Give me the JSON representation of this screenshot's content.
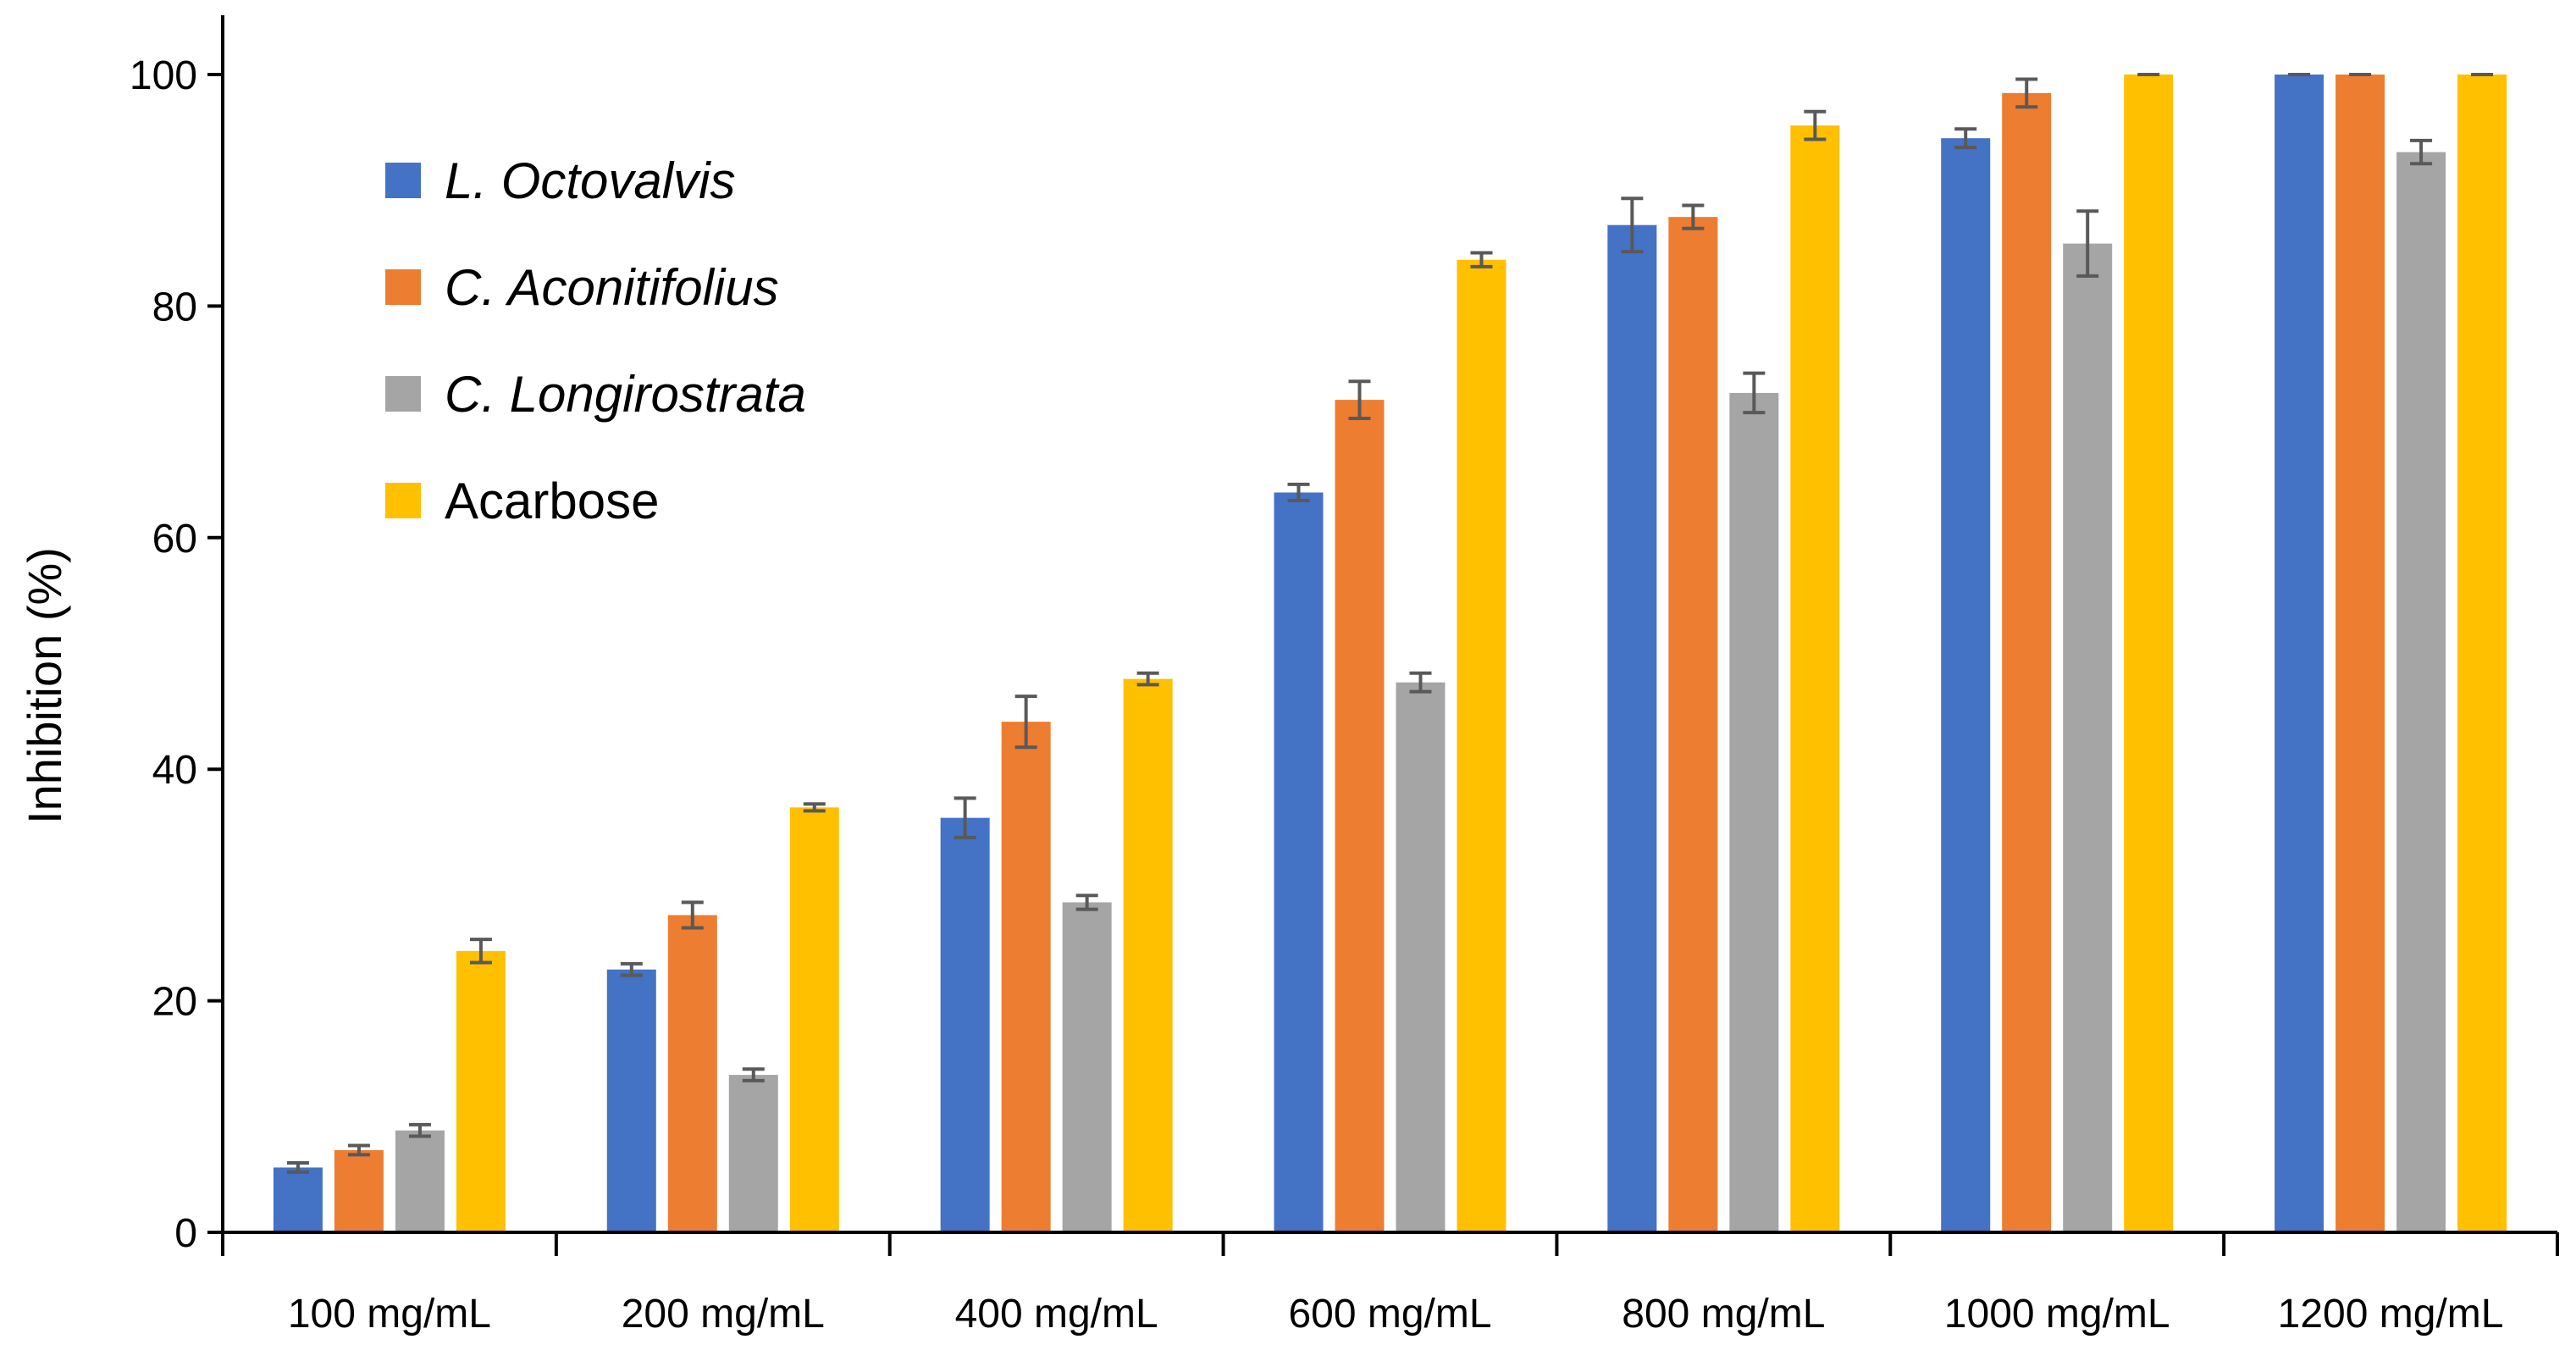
{
  "chart_data": {
    "type": "bar",
    "title": "",
    "xlabel": "",
    "ylabel": "Inhibition (%)",
    "ylim": [
      0,
      100
    ],
    "yticks": [
      0,
      20,
      40,
      60,
      80,
      100
    ],
    "categories": [
      "100 mg/mL",
      "200 mg/mL",
      "400 mg/mL",
      "600 mg/mL",
      "800 mg/mL",
      "1000 mg/mL",
      "1200 mg/mL"
    ],
    "series": [
      {
        "name": "L. Octovalvis",
        "italic": true,
        "color": "#4472C4",
        "values": [
          5.6,
          22.7,
          35.8,
          63.9,
          87.0,
          94.5,
          100
        ],
        "errors": [
          0.4,
          0.5,
          1.7,
          0.7,
          2.3,
          0.8,
          0
        ]
      },
      {
        "name": "C. Aconitifolius",
        "italic": true,
        "color": "#ED7D31",
        "values": [
          7.1,
          27.4,
          44.1,
          71.9,
          87.7,
          98.4,
          100
        ],
        "errors": [
          0.4,
          1.1,
          2.2,
          1.6,
          1.0,
          1.2,
          0
        ]
      },
      {
        "name": "C. Longirostrata",
        "italic": true,
        "color": "#A5A5A5",
        "values": [
          8.8,
          13.6,
          28.5,
          47.5,
          72.5,
          85.4,
          93.3
        ],
        "errors": [
          0.5,
          0.5,
          0.6,
          0.8,
          1.7,
          2.8,
          1.0
        ]
      },
      {
        "name": "Acarbose",
        "italic": false,
        "color": "#FFC000",
        "values": [
          24.3,
          36.7,
          47.8,
          84.0,
          95.6,
          100,
          100
        ],
        "errors": [
          1.0,
          0.3,
          0.5,
          0.6,
          1.2,
          0,
          0
        ]
      }
    ],
    "grid": false,
    "legend_position": "top-left",
    "error_bar_color": "#595959"
  }
}
